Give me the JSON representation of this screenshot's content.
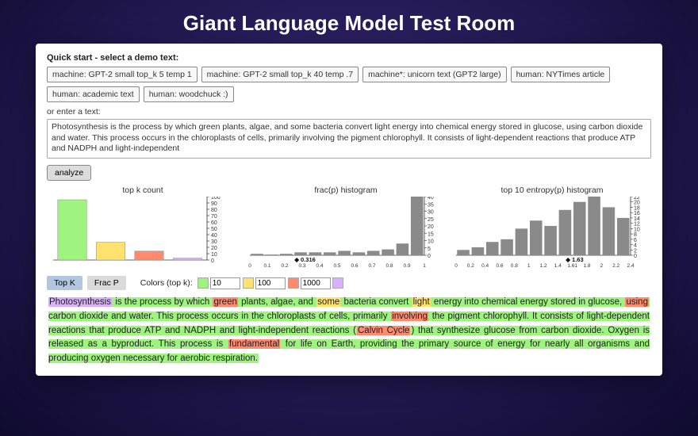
{
  "title": "Giant Language Model Test Room",
  "quickstart_label": "Quick start - select a demo text:",
  "demo_buttons": [
    "machine: GPT-2 small top_k 5 temp 1",
    "machine: GPT-2 small top_k 40 temp .7",
    "machine*: unicorn text (GPT2 large)",
    "human: NYTimes article",
    "human: academic text",
    "human: woodchuck :)"
  ],
  "enter_label": "or enter a text:",
  "textarea_value": "Photosynthesis is the process by which green plants, algae, and some bacteria convert light energy into chemical energy stored in glucose, using carbon dioxide and water. This process occurs in the chloroplasts of cells, primarily involving the pigment chlorophyll. It consists of light-dependent reactions that produce ATP and NADPH and light-independent",
  "analyze_label": "analyze",
  "charts": {
    "topk": {
      "title": "top k count",
      "type": "bar",
      "bars": [
        {
          "h": 95,
          "color": "#9ef47e"
        },
        {
          "h": 28,
          "color": "#ffe36e"
        },
        {
          "h": 14,
          "color": "#ff8a6e"
        },
        {
          "h": 3,
          "color": "#d8b0ff"
        }
      ],
      "ymax": 100,
      "ytick": 10,
      "bar_color_grid": "#606060"
    },
    "fracp": {
      "title": "frac(p) histogram",
      "type": "bar",
      "bars": [
        1,
        0.5,
        1,
        2,
        2,
        2,
        3,
        2,
        3,
        4,
        8,
        40
      ],
      "ymax": 40,
      "ytick": 5,
      "color": "#8a8a8a",
      "xticks": [
        "0",
        "0.1",
        "0.2",
        "0.3",
        "0.4",
        "0.5",
        "0.6",
        "0.7",
        "0.8",
        "0.9",
        "1"
      ],
      "marker": {
        "value": 0.316,
        "label": "◆ 0.316"
      }
    },
    "entropy": {
      "title": "top 10 entropy(p) histogram",
      "type": "bar",
      "bars": [
        2,
        3,
        5,
        6,
        10,
        13,
        11,
        17,
        20,
        22,
        18,
        14
      ],
      "ymax": 22,
      "ytick": 2,
      "color": "#8a8a8a",
      "xticks": [
        "0",
        "0.2",
        "0.4",
        "0.6",
        "0.8",
        "1",
        "1.2",
        "1.4",
        "1.61",
        "1.8",
        "2",
        "2.2",
        "2.4"
      ],
      "marker": {
        "value": 1.63,
        "label": "◆ 1.63"
      }
    }
  },
  "tabs": {
    "topk": "Top K",
    "fracp": "Frac P"
  },
  "colors_label": "Colors (top k):",
  "thresholds": [
    {
      "color": "#9ef47e",
      "value": "10"
    },
    {
      "color": "#ffe36e",
      "value": "100"
    },
    {
      "color": "#ff8a6e",
      "value": "1000"
    },
    {
      "color": "#d8b0ff",
      "value": ""
    }
  ],
  "result": {
    "colors": {
      "g": "#9ef47e",
      "y": "#ffe36e",
      "r": "#ff8a6e",
      "p": "#d8b0ff"
    },
    "tokens": [
      {
        "t": "Photosynthesis",
        "c": "p"
      },
      {
        "t": " is the process by which ",
        "c": "g"
      },
      {
        "t": "green",
        "c": "r"
      },
      {
        "t": " plants, algae, and ",
        "c": "g"
      },
      {
        "t": "some",
        "c": "y"
      },
      {
        "t": " bacteria convert ",
        "c": "g"
      },
      {
        "t": "light",
        "c": "y"
      },
      {
        "t": " energy into chemical energy stored in glucose, ",
        "c": "g"
      },
      {
        "t": "using",
        "c": "r"
      },
      {
        "t": " carbon dioxide and water. This process occurs in the chloroplasts of cells, primarily ",
        "c": "g"
      },
      {
        "t": "involving",
        "c": "r"
      },
      {
        "t": " the pigment chlorophyll. It consists of light-dependent reactions that produce ATP and NADPH and light-independent reactions (",
        "c": "g"
      },
      {
        "t": "Calvin Cycle",
        "c": "r"
      },
      {
        "t": ") that synthesize glucose from carbon dioxide. Oxygen is released as a byproduct. This process is ",
        "c": "g"
      },
      {
        "t": "fundamental",
        "c": "r"
      },
      {
        "t": " for life on Earth, providing the primary source of energy for nearly all organisms and producing oxygen necessary for aerobic respiration.",
        "c": "g"
      }
    ]
  }
}
